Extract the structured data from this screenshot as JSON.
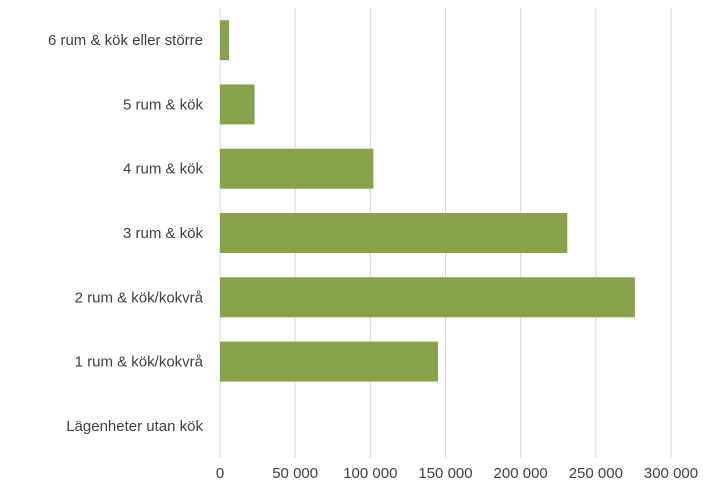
{
  "chart_data": {
    "type": "bar",
    "orientation": "horizontal",
    "categories": [
      "6 rum & kök eller större",
      "5 rum & kök",
      "4 rum & kök",
      "3 rum & kök",
      "2 rum & kök/kokvrå",
      "1 rum & kök/kokvrå",
      "Lägenheter utan kök"
    ],
    "values": [
      6000,
      23000,
      102000,
      231000,
      276000,
      145000,
      0
    ],
    "xlim": [
      0,
      300000
    ],
    "xticks": [
      0,
      50000,
      100000,
      150000,
      200000,
      250000,
      300000
    ],
    "xtick_labels": [
      "0",
      "50 000",
      "100 000",
      "150 000",
      "200 000",
      "250 000",
      "300 000"
    ],
    "title": "",
    "xlabel": "",
    "ylabel": "",
    "grid": "vertical",
    "legend": "none",
    "bar_color": "#86A34A",
    "grid_color": "#D9D9D9"
  }
}
